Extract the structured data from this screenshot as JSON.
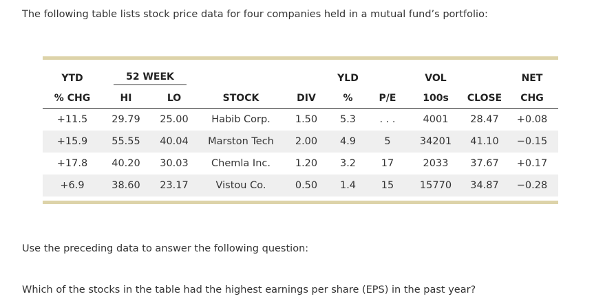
{
  "intro_text": "The following table lists stock price data for four companies held in a mutual fund’s portfolio:",
  "table": {
    "header_row1": {
      "ytd": "YTD",
      "week52": "52 WEEK",
      "yld": "YLD",
      "vol": "VOL",
      "net": "NET"
    },
    "header_row2": {
      "pct_chg": "% CHG",
      "hi": "HI",
      "lo": "LO",
      "stock": "STOCK",
      "div": "DIV",
      "yld_pct": "%",
      "pe": "P/E",
      "vol_100s": "100s",
      "close": "CLOSE",
      "chg": "CHG"
    },
    "rows": [
      {
        "ytd": "+11.5",
        "hi": "29.79",
        "lo": "25.00",
        "stock": "Habib Corp.",
        "div": "1.50",
        "yld": "5.3",
        "pe": ". . .",
        "vol": "4001",
        "close": "28.47",
        "net": "+0.08"
      },
      {
        "ytd": "+15.9",
        "hi": "55.55",
        "lo": "40.04",
        "stock": "Marston Tech",
        "div": "2.00",
        "yld": "4.9",
        "pe": "5",
        "vol": "34201",
        "close": "41.10",
        "net": "−0.15"
      },
      {
        "ytd": "+17.8",
        "hi": "40.20",
        "lo": "30.03",
        "stock": "Chemla Inc.",
        "div": "1.20",
        "yld": "3.2",
        "pe": "17",
        "vol": "2033",
        "close": "37.67",
        "net": "+0.17"
      },
      {
        "ytd": "+6.9",
        "hi": "38.60",
        "lo": "23.17",
        "stock": "Vistou Co.",
        "div": "0.50",
        "yld": "1.4",
        "pe": "15",
        "vol": "15770",
        "close": "34.87",
        "net": "−0.28"
      }
    ]
  },
  "question_intro": "Use the preceding data to answer the following question:",
  "question": "Which of the stocks in the table had the highest earnings per share (EPS) in the past year?",
  "colors": {
    "accent_bar": "#ddd3a9",
    "row_shade": "#efefef",
    "text": "#333333"
  }
}
